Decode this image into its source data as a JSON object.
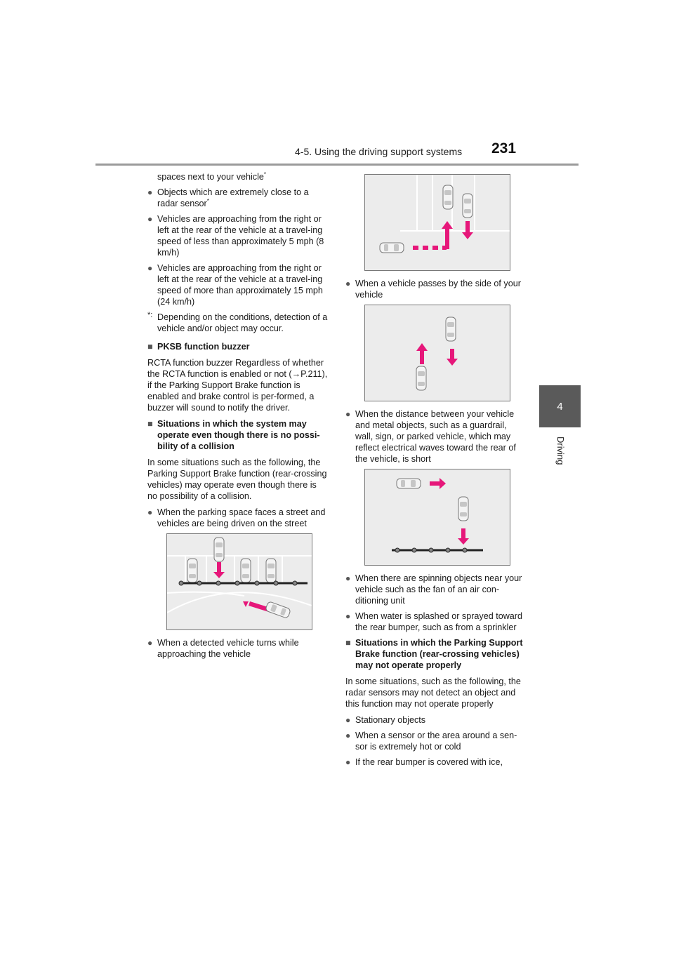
{
  "header": {
    "section_title": "4-5. Using the driving support systems",
    "page_number": "231"
  },
  "side_tab": {
    "number": "4",
    "label": "Driving"
  },
  "left_column": {
    "continuation": "spaces next to your vehicle",
    "bullets_a": [
      "Objects which are extremely close to a radar sensor",
      "Vehicles are approaching from the right or left at the rear of the vehicle at a travel-ing speed of less than approximately 5 mph (8 km/h)",
      "Vehicles are approaching from the right or left at the rear of the vehicle at a travel-ing speed of more than approximately 15 mph (24 km/h)"
    ],
    "note_mark": "*:",
    "note_text": "Depending on the conditions, detection of a vehicle and/or object may occur.",
    "heading_buzzer": "PKSB function buzzer",
    "para_buzzer": "RCTA function buzzer Regardless of whether the RCTA function is enabled or not (→P.211), if the Parking Support Brake function is enabled and brake control is per-formed, a buzzer will sound to notify the driver.",
    "heading_operate": "Situations in which the system may operate even though there is no possi-bility of a collision",
    "para_operate": "In some situations such as the following, the Parking Support Brake function (rear-crossing vehicles) may operate even though there is no possibility of a collision.",
    "bullet_street": "When the parking space faces a street and vehicles are being driven on the street",
    "bullet_turns": "When a detected vehicle turns while approaching the vehicle"
  },
  "right_column": {
    "bullet_passes": "When a vehicle passes by the side of your vehicle",
    "bullet_metal": "When the distance between your vehicle and metal objects, such as a guardrail, wall, sign, or parked vehicle, which may reflect electrical waves toward the rear of the vehicle, is short",
    "bullets_b": [
      "When there are spinning objects near your vehicle such as the fan of an air con-ditioning unit",
      "When water is splashed or sprayed toward the rear bumper, such as from a sprinkler"
    ],
    "heading_not_operate": "Situations in which the Parking Support Brake function (rear-crossing vehicles) may not operate properly",
    "para_not_operate": "In some situations, such as the following, the radar sensors may not detect an object and this function may not operate properly",
    "bullets_c": [
      "Stationary objects",
      "When a sensor or the area around a sen-sor is extremely hot or cold",
      "If the rear bumper is covered with ice,"
    ]
  },
  "bullet_glyph": "●",
  "heading_glyph": "■",
  "sup_star": "*",
  "colors": {
    "arrow": "#e6177a",
    "illustration_bg": "#ececec",
    "tab": "#5a5a5a"
  }
}
